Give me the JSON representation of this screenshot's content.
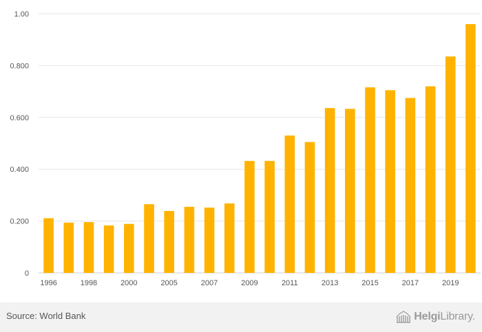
{
  "chart_data": {
    "type": "bar",
    "categories": [
      "1996",
      "1997",
      "1998",
      "1999",
      "2000",
      "2004",
      "2005",
      "2006",
      "2007",
      "2008",
      "2009",
      "2010",
      "2011",
      "2012",
      "2013",
      "2014",
      "2015",
      "2016",
      "2017",
      "2018",
      "2019",
      "2020"
    ],
    "values": [
      0.211,
      0.194,
      0.196,
      0.183,
      0.189,
      0.265,
      0.239,
      0.255,
      0.252,
      0.268,
      0.432,
      0.432,
      0.53,
      0.505,
      0.636,
      0.633,
      0.716,
      0.705,
      0.675,
      0.72,
      0.835,
      0.96
    ],
    "tick_labels": [
      "1996",
      "",
      "1998",
      "",
      "2000",
      "",
      "2005",
      "",
      "2007",
      "",
      "2009",
      "",
      "2011",
      "",
      "2013",
      "",
      "2015",
      "",
      "2017",
      "",
      "2019",
      ""
    ],
    "yticks": [
      0,
      0.2,
      0.4,
      0.6,
      0.8,
      1.0
    ],
    "ytick_labels": [
      "0",
      "0.200",
      "0.400",
      "0.600",
      "0.800",
      "1.00"
    ],
    "ylim": [
      0,
      1.0
    ],
    "title": "",
    "xlabel": "",
    "ylabel": "",
    "grid": true,
    "bar_color": "#FFB300",
    "grid_color": "#e6e6e6",
    "axis_label_color": "#555555"
  },
  "footer": {
    "source": "Source: World Bank",
    "logo_bold": "Helgi",
    "logo_light": "Library."
  }
}
